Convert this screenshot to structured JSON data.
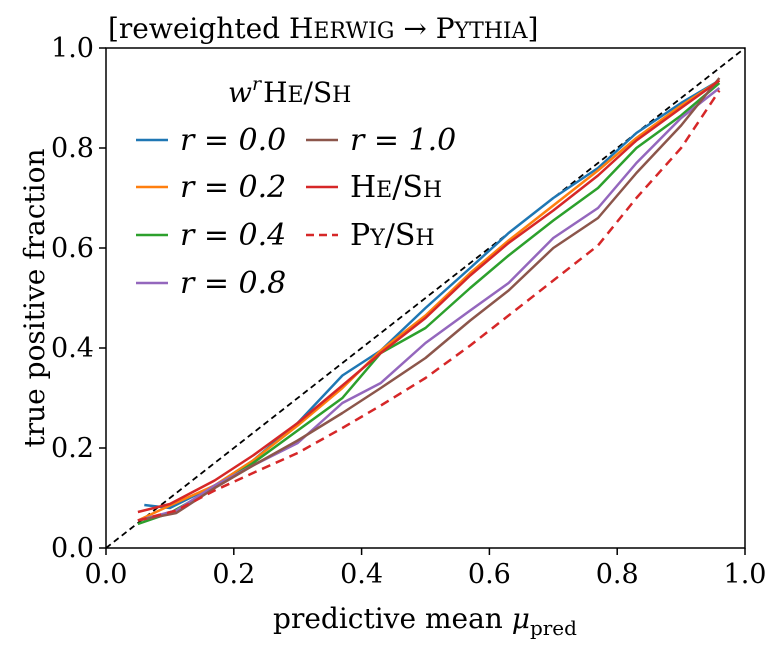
{
  "chart_data": {
    "type": "line",
    "title_parts": {
      "open": "[reweighted ",
      "a_initial": "H",
      "a_rest": "ERWIG",
      "arrow": " → ",
      "b_initial": "P",
      "b_rest": "YTHIA",
      "close": "]"
    },
    "xlabel": "predictive mean",
    "xlabel_symbol": "μ",
    "xlabel_sub": "pred",
    "ylabel": "true positive fraction",
    "xlim": [
      0.0,
      1.0
    ],
    "ylim": [
      0.0,
      1.0
    ],
    "xticks": [
      "0.0",
      "0.2",
      "0.4",
      "0.6",
      "0.8",
      "1.0"
    ],
    "yticks": [
      "0.0",
      "0.2",
      "0.4",
      "0.6",
      "0.8",
      "1.0"
    ],
    "grid": false,
    "legend": {
      "title_parts": {
        "w": "w",
        "r": "r",
        "a": "H",
        "a_rest": "E",
        "slash": "/",
        "b": "S",
        "b_rest": "H"
      },
      "placement": "upper-left"
    },
    "diagonal": {
      "color": "#000000",
      "style": "dashed"
    },
    "series": [
      {
        "name": "r = 0.0",
        "label": "r = 0.0",
        "color": "#1f77b4",
        "style": "solid",
        "x": [
          0.06,
          0.1,
          0.17,
          0.23,
          0.3,
          0.37,
          0.43,
          0.5,
          0.57,
          0.63,
          0.7,
          0.77,
          0.83,
          0.9,
          0.96
        ],
        "y": [
          0.086,
          0.08,
          0.125,
          0.175,
          0.25,
          0.345,
          0.395,
          0.48,
          0.56,
          0.63,
          0.7,
          0.76,
          0.83,
          0.89,
          0.935
        ]
      },
      {
        "name": "r = 0.2",
        "label": "r = 0.2",
        "color": "#ff7f0e",
        "style": "solid",
        "x": [
          0.05,
          0.1,
          0.17,
          0.23,
          0.3,
          0.37,
          0.43,
          0.5,
          0.57,
          0.63,
          0.7,
          0.77,
          0.83,
          0.9,
          0.96
        ],
        "y": [
          0.055,
          0.085,
          0.125,
          0.175,
          0.245,
          0.32,
          0.395,
          0.465,
          0.55,
          0.615,
          0.685,
          0.755,
          0.82,
          0.885,
          0.935
        ]
      },
      {
        "name": "r = 0.4",
        "label": "r = 0.4",
        "color": "#2ca02c",
        "style": "solid",
        "x": [
          0.05,
          0.1,
          0.17,
          0.23,
          0.3,
          0.37,
          0.43,
          0.5,
          0.57,
          0.63,
          0.7,
          0.77,
          0.83,
          0.9,
          0.96
        ],
        "y": [
          0.048,
          0.07,
          0.12,
          0.17,
          0.235,
          0.3,
          0.39,
          0.44,
          0.52,
          0.585,
          0.655,
          0.72,
          0.8,
          0.865,
          0.93
        ]
      },
      {
        "name": "r = 0.8",
        "label": "r = 0.8",
        "color": "#9467bd",
        "style": "solid",
        "x": [
          0.05,
          0.11,
          0.17,
          0.23,
          0.3,
          0.37,
          0.43,
          0.5,
          0.57,
          0.63,
          0.7,
          0.77,
          0.83,
          0.9,
          0.96
        ],
        "y": [
          0.055,
          0.075,
          0.125,
          0.165,
          0.21,
          0.29,
          0.33,
          0.41,
          0.475,
          0.53,
          0.62,
          0.68,
          0.77,
          0.86,
          0.92
        ]
      },
      {
        "name": "r = 1.0",
        "label": "r = 1.0",
        "color": "#8c564b",
        "style": "solid",
        "x": [
          0.05,
          0.11,
          0.17,
          0.23,
          0.3,
          0.37,
          0.43,
          0.5,
          0.57,
          0.63,
          0.7,
          0.77,
          0.83,
          0.9,
          0.96
        ],
        "y": [
          0.055,
          0.07,
          0.12,
          0.165,
          0.215,
          0.27,
          0.32,
          0.38,
          0.455,
          0.515,
          0.6,
          0.66,
          0.75,
          0.845,
          0.94
        ]
      },
      {
        "name": "He/Sh",
        "label_parts": {
          "a": "H",
          "a_rest": "E",
          "slash": "/",
          "b": "S",
          "b_rest": "H"
        },
        "color": "#d62728",
        "style": "solid",
        "x": [
          0.05,
          0.1,
          0.17,
          0.23,
          0.3,
          0.37,
          0.43,
          0.5,
          0.57,
          0.63,
          0.7,
          0.77,
          0.83,
          0.9,
          0.96
        ],
        "y": [
          0.072,
          0.088,
          0.135,
          0.185,
          0.25,
          0.325,
          0.39,
          0.46,
          0.545,
          0.61,
          0.675,
          0.745,
          0.815,
          0.88,
          0.935
        ]
      },
      {
        "name": "Py/Sh",
        "label_parts": {
          "a": "P",
          "a_rest": "Y",
          "slash": "/",
          "b": "S",
          "b_rest": "H"
        },
        "color": "#d62728",
        "style": "dashed",
        "x": [
          0.05,
          0.11,
          0.17,
          0.23,
          0.3,
          0.37,
          0.43,
          0.5,
          0.57,
          0.63,
          0.7,
          0.77,
          0.83,
          0.9,
          0.96
        ],
        "y": [
          0.055,
          0.075,
          0.115,
          0.15,
          0.19,
          0.24,
          0.285,
          0.34,
          0.405,
          0.465,
          0.535,
          0.605,
          0.7,
          0.8,
          0.915
        ]
      }
    ]
  }
}
